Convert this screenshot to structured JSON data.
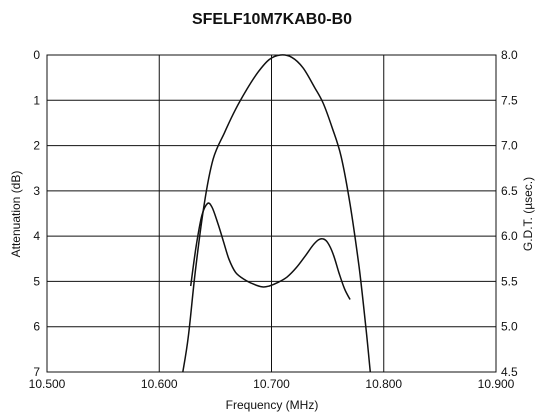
{
  "chart_data": {
    "type": "line",
    "title": "SFELF10M7KAB0-B0",
    "xlabel": "Frequency (MHz)",
    "ylabel": "Attenuation (dB)",
    "y2label": "G.D.T. (µsec.)",
    "xlim": [
      10.5,
      10.9
    ],
    "ylim": [
      7,
      0
    ],
    "y2lim": [
      4.5,
      8.0
    ],
    "x_ticks": [
      "10.500",
      "10.600",
      "10.700",
      "10.800",
      "10.900"
    ],
    "y_ticks": [
      "0",
      "1",
      "2",
      "3",
      "4",
      "5",
      "6",
      "7"
    ],
    "y2_ticks": [
      "8.0",
      "7.5",
      "7.0",
      "6.5",
      "6.0",
      "5.5",
      "5.0",
      "4.5"
    ],
    "grid": true,
    "series": [
      {
        "axis": "left",
        "x": [
          10.621,
          10.626,
          10.632,
          10.64,
          10.648,
          10.658,
          10.668,
          10.678,
          10.688,
          10.698,
          10.708,
          10.718,
          10.728,
          10.738,
          10.746,
          10.754,
          10.762,
          10.77,
          10.778,
          10.784,
          10.788
        ],
        "y": [
          7.0,
          6.2,
          4.8,
          3.3,
          2.3,
          1.72,
          1.2,
          0.76,
          0.38,
          0.1,
          0.0,
          0.05,
          0.28,
          0.7,
          1.06,
          1.6,
          2.24,
          3.3,
          4.68,
          6.0,
          7.0
        ]
      },
      {
        "axis": "right",
        "x": [
          10.628,
          10.633,
          10.638,
          10.643,
          10.647,
          10.652,
          10.657,
          10.662,
          10.668,
          10.676,
          10.684,
          10.692,
          10.698,
          10.706,
          10.714,
          10.722,
          10.73,
          10.737,
          10.742,
          10.746,
          10.75,
          10.755,
          10.76,
          10.765,
          10.77
        ],
        "y": [
          5.45,
          5.9,
          6.23,
          6.36,
          6.32,
          6.15,
          5.95,
          5.75,
          5.6,
          5.52,
          5.47,
          5.44,
          5.45,
          5.49,
          5.55,
          5.65,
          5.78,
          5.9,
          5.96,
          5.97,
          5.93,
          5.8,
          5.6,
          5.42,
          5.3
        ]
      }
    ]
  }
}
